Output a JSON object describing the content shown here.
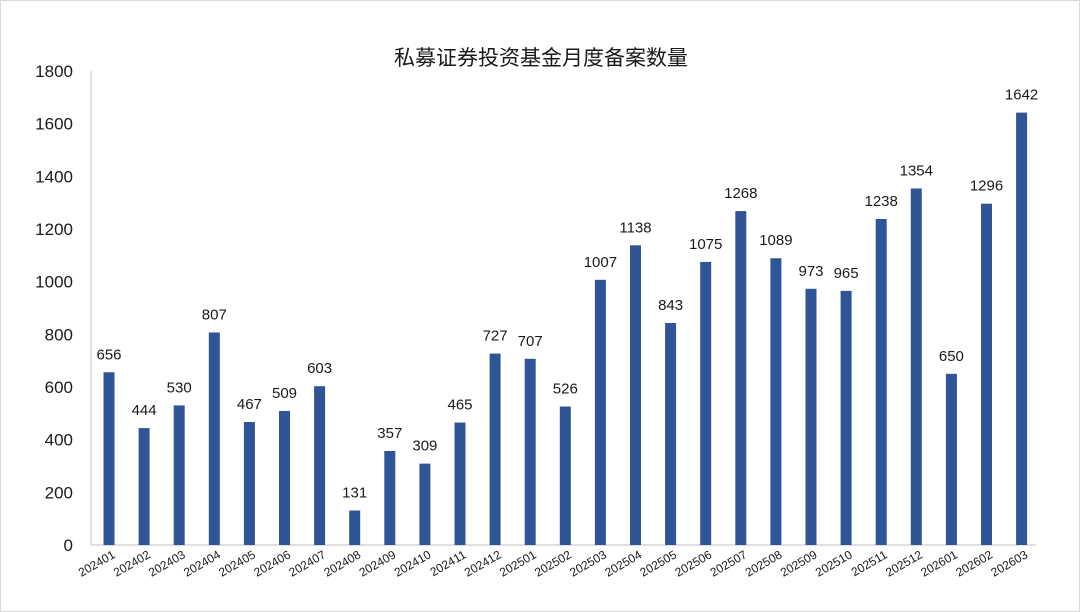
{
  "chart_data": {
    "type": "bar",
    "title": "私募证券投资基金月度备案数量",
    "xlabel": "",
    "ylabel": "",
    "ylim": [
      0,
      1800
    ],
    "yticks": [
      0,
      200,
      400,
      600,
      800,
      1000,
      1200,
      1400,
      1600,
      1800
    ],
    "grid": false,
    "legend": "none",
    "bar_color": "#2f5597",
    "categories": [
      "202401",
      "202402",
      "202403",
      "202404",
      "202405",
      "202406",
      "202407",
      "202408",
      "202409",
      "202410",
      "202411",
      "202412",
      "202501",
      "202502",
      "202503",
      "202504",
      "202505",
      "202506",
      "202507",
      "202508",
      "202509",
      "202510",
      "202511",
      "202512",
      "202601",
      "202602",
      "202603"
    ],
    "values": [
      656,
      444,
      530,
      807,
      467,
      509,
      603,
      131,
      357,
      309,
      465,
      727,
      707,
      526,
      1007,
      1138,
      843,
      1075,
      1268,
      1089,
      973,
      965,
      1238,
      1354,
      650,
      1296,
      1642
    ]
  }
}
